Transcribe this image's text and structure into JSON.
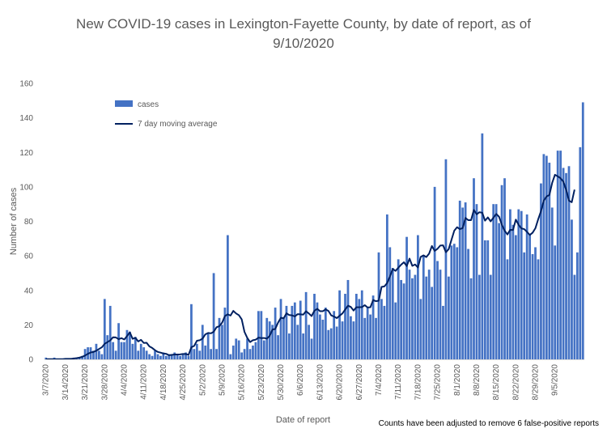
{
  "chart_data": {
    "type": "bar",
    "title": "New COVID-19 cases in Lexington-Fayette County, by date of report, as of 9/10/2020",
    "xlabel": "Date of report",
    "ylabel": "Number of cases",
    "ylim": [
      0,
      160
    ],
    "yticks": [
      0,
      20,
      40,
      60,
      80,
      100,
      120,
      140,
      160
    ],
    "xtick_labels": [
      "3/7/2020",
      "3/14/2020",
      "3/21/2020",
      "3/28/2020",
      "4/4/2020",
      "4/11/2020",
      "4/18/2020",
      "4/25/2020",
      "5/2/2020",
      "5/9/2020",
      "5/16/2020",
      "5/23/2020",
      "5/30/2020",
      "6/6/2020",
      "6/13/2020",
      "6/20/2020",
      "6/27/2020",
      "7/4/2020",
      "7/11/2020",
      "7/18/2020",
      "7/25/2020",
      "8/1/2020",
      "8/8/2020",
      "8/15/2020",
      "8/22/2020",
      "8/29/2020",
      "9/5/2020"
    ],
    "first_date": "3/7/2020",
    "last_date": "9/10/2020",
    "grid": false,
    "legend_position": "upper-left",
    "series": [
      {
        "name": "cases",
        "kind": "bar",
        "color": "#4472C4",
        "values": [
          1,
          0,
          0,
          1,
          0,
          0,
          0,
          0,
          0,
          0,
          1,
          1,
          1,
          2,
          6,
          7,
          7,
          5,
          9,
          5,
          3,
          35,
          14,
          31,
          10,
          5,
          21,
          10,
          10,
          17,
          16,
          9,
          13,
          5,
          9,
          7,
          5,
          3,
          2,
          5,
          3,
          2,
          4,
          2,
          3,
          3,
          4,
          3,
          2,
          3,
          4,
          2,
          32,
          6,
          9,
          5,
          20,
          8,
          15,
          6,
          50,
          6,
          24,
          20,
          30,
          72,
          3,
          8,
          12,
          11,
          4,
          6,
          12,
          6,
          8,
          10,
          28,
          28,
          11,
          24,
          22,
          20,
          30,
          14,
          35,
          24,
          31,
          15,
          31,
          33,
          20,
          34,
          15,
          39,
          20,
          12,
          38,
          33,
          26,
          23,
          30,
          17,
          18,
          28,
          19,
          40,
          22,
          38,
          46,
          25,
          22,
          38,
          35,
          40,
          24,
          30,
          26,
          37,
          24,
          62,
          35,
          31,
          84,
          65,
          53,
          33,
          58,
          46,
          44,
          71,
          52,
          47,
          49,
          72,
          35,
          60,
          48,
          52,
          42,
          100,
          57,
          52,
          31,
          116,
          48,
          66,
          67,
          65,
          92,
          88,
          91,
          64,
          47,
          105,
          90,
          49,
          131,
          69,
          69,
          49,
          90,
          90,
          79,
          101,
          105,
          58,
          87,
          78,
          72,
          87,
          86,
          62,
          84,
          72,
          61,
          65,
          58,
          102,
          119,
          118,
          114,
          88,
          66,
          121,
          121,
          111,
          108,
          112,
          81,
          49,
          62,
          123,
          149
        ]
      },
      {
        "name": "7 day moving average",
        "kind": "line",
        "color": "#002060",
        "values": [
          0.1,
          0.1,
          0.1,
          0.1,
          0.1,
          0.1,
          0.1,
          0.3,
          0.3,
          0.3,
          0.5,
          0.7,
          1.0,
          1.5,
          2.2,
          3.2,
          4.0,
          4.3,
          5.0,
          6.0,
          7.0,
          9.0,
          10.0,
          11.0,
          12.8,
          12.7,
          11.7,
          12.3,
          11.5,
          13.5,
          15.7,
          11.9,
          12.5,
          10.4,
          11.3,
          9.5,
          9.6,
          7.5,
          6.6,
          5.3,
          4.3,
          3.9,
          3.4,
          3.2,
          2.4,
          2.6,
          2.8,
          2.8,
          2.9,
          3.1,
          3.1,
          2.6,
          7.0,
          7.8,
          10.8,
          11.1,
          12.0,
          14.5,
          15.3,
          15.1,
          16.0,
          18.6,
          19.2,
          21.3,
          25.1,
          26.1,
          25.4,
          28.1,
          26.6,
          25.6,
          23.2,
          15.9,
          12.4,
          10.0,
          11.1,
          11.4,
          12.6,
          12.3,
          12.4,
          12.0,
          13.6,
          17.3,
          17.6,
          21.3,
          24.1,
          23.8,
          26.7,
          25.7,
          25.5,
          24.9,
          26.2,
          26.1,
          25.9,
          27.9,
          26.6,
          25.1,
          28.2,
          29.3,
          27.9,
          27.9,
          29.0,
          28.1,
          25.5,
          24.8,
          23.9,
          25.3,
          26.6,
          28.9,
          31.1,
          30.4,
          28.3,
          30.2,
          30.2,
          30.3,
          31.4,
          30.1,
          30.2,
          34.4,
          33.7,
          34.0,
          42.0,
          42.3,
          44.2,
          48.1,
          52.4,
          51.3,
          53.1,
          54.9,
          56.3,
          54.1,
          58.4,
          54.2,
          55.0,
          53.3,
          59.4,
          60.3,
          59.3,
          61.3,
          65.7,
          62.9,
          64.1,
          66.0,
          66.1,
          62.1,
          63.9,
          69.3,
          74.6,
          76.6,
          75.5,
          76.1,
          82.0,
          80.7,
          80.7,
          86.6,
          84.1,
          85.3,
          85.0,
          80.4,
          82.3,
          80.0,
          82.1,
          84.3,
          82.7,
          78.1,
          74.6,
          72.4,
          75.1,
          75.0,
          81.0,
          78.0,
          75.9,
          75.5,
          73.9,
          72.1,
          73.4,
          76.0,
          81.2,
          85.9,
          92.0,
          94.4,
          95.3,
          102.3,
          107.0,
          106.1,
          105.0,
          103.0,
          98.3,
          92.0,
          91.1,
          98.4
        ]
      }
    ]
  },
  "footnote": "Counts have been adjusted to remove 6 false-positive reports"
}
